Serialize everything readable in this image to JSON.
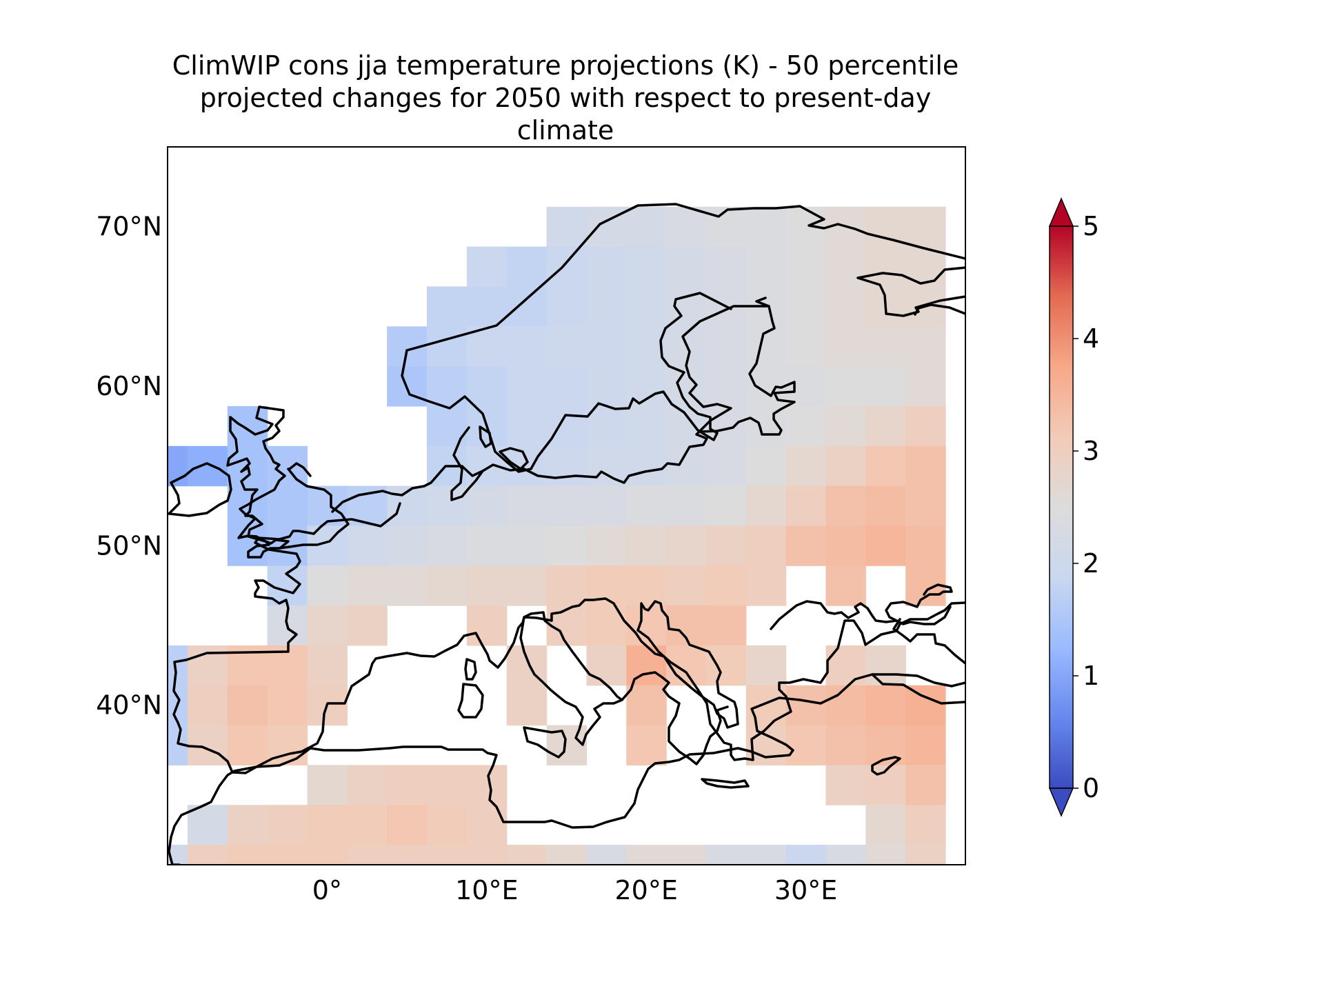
{
  "figure": {
    "title_lines": [
      "ClimWIP cons jja temperature projections (K) - 50 percentile",
      "projected changes for 2050 with respect to present-day",
      "climate"
    ]
  },
  "map": {
    "projection": "PlateCarree",
    "lon_range": [
      -10,
      40
    ],
    "lat_range": [
      30,
      75
    ],
    "grid_cell_deg": 2.5,
    "lon_ticks": [
      {
        "value": 0,
        "label": "0°"
      },
      {
        "value": 10,
        "label": "10°E"
      },
      {
        "value": 20,
        "label": "20°E"
      },
      {
        "value": 30,
        "label": "30°E"
      }
    ],
    "lat_ticks": [
      {
        "value": 70,
        "label": "70°N"
      },
      {
        "value": 60,
        "label": "60°N"
      },
      {
        "value": 50,
        "label": "50°N"
      },
      {
        "value": 40,
        "label": "40°N"
      }
    ],
    "coastlines": true,
    "colormap": "coolwarm",
    "colormap_stops": [
      "#3b4cc0",
      "#6788ee",
      "#9abbff",
      "#c9d7f0",
      "#dddcdc",
      "#f2cbb7",
      "#f7a889",
      "#e36b52",
      "#b40426"
    ],
    "colorbar": {
      "orientation": "vertical",
      "range": [
        0,
        5
      ],
      "extend": "both",
      "ticks": [
        {
          "value": 0,
          "label": "0"
        },
        {
          "value": 1,
          "label": "1"
        },
        {
          "value": 2,
          "label": "2"
        },
        {
          "value": 3,
          "label": "3"
        },
        {
          "value": 4,
          "label": "4"
        },
        {
          "value": 5,
          "label": "5"
        }
      ]
    },
    "grid_values": [
      {
        "lat": 70,
        "lons": [
          15,
          17.5,
          20,
          22.5,
          25,
          27.5,
          30,
          32.5,
          35,
          37.5
        ],
        "values": [
          2.1,
          2.2,
          2.2,
          2.3,
          2.4,
          2.4,
          2.5,
          2.6,
          2.7,
          2.7
        ]
      },
      {
        "lat": 67.5,
        "lons": [
          10,
          12.5,
          15,
          17.5,
          20,
          22.5,
          25,
          27.5,
          30,
          32.5,
          35,
          37.5
        ],
        "values": [
          1.9,
          1.8,
          1.9,
          2.0,
          2.1,
          2.2,
          2.3,
          2.4,
          2.5,
          2.6,
          2.7,
          2.7
        ]
      },
      {
        "lat": 65,
        "lons": [
          7.5,
          10,
          12.5,
          15,
          17.5,
          20,
          22.5,
          25,
          27.5,
          30,
          32.5,
          35,
          37.5
        ],
        "values": [
          1.8,
          1.8,
          1.8,
          1.9,
          2.0,
          2.1,
          2.2,
          2.3,
          2.4,
          2.5,
          2.6,
          2.7,
          2.7
        ]
      },
      {
        "lat": 62.5,
        "lons": [
          5,
          7.5,
          10,
          12.5,
          15,
          17.5,
          20,
          22.5,
          25,
          27.5,
          30,
          32.5,
          35,
          37.5
        ],
        "values": [
          1.6,
          1.8,
          1.9,
          1.9,
          2.0,
          2.0,
          2.1,
          2.2,
          2.3,
          2.4,
          2.5,
          2.6,
          2.6,
          2.6
        ]
      },
      {
        "lat": 60,
        "lons": [
          5,
          7.5,
          10,
          12.5,
          15,
          17.5,
          20,
          22.5,
          25,
          27.5,
          30,
          32.5,
          35,
          37.5
        ],
        "values": [
          1.5,
          1.7,
          1.8,
          1.9,
          1.9,
          2.0,
          2.1,
          2.2,
          2.3,
          2.4,
          2.4,
          2.5,
          2.5,
          2.6
        ]
      },
      {
        "lat": 57.5,
        "lons": [
          -5,
          7.5,
          10,
          12.5,
          15,
          17.5,
          20,
          22.5,
          25,
          27.5,
          30,
          32.5,
          35,
          37.5
        ],
        "values": [
          1.4,
          1.7,
          1.8,
          1.9,
          1.9,
          2.0,
          2.1,
          2.2,
          2.3,
          2.4,
          2.5,
          2.6,
          2.8,
          3.0
        ]
      },
      {
        "lat": 55,
        "lons": [
          -10,
          -7.5,
          -5,
          -2.5,
          7.5,
          10,
          12.5,
          15,
          17.5,
          20,
          22.5,
          25,
          27.5,
          30,
          32.5,
          35,
          37.5
        ],
        "values": [
          1.0,
          1.1,
          1.4,
          1.5,
          1.8,
          1.9,
          1.9,
          2.0,
          2.1,
          2.1,
          2.2,
          2.3,
          2.5,
          2.7,
          2.9,
          3.2,
          3.3
        ]
      },
      {
        "lat": 52.5,
        "lons": [
          -5,
          -2.5,
          0,
          2.5,
          5,
          7.5,
          10,
          12.5,
          15,
          17.5,
          20,
          22.5,
          25,
          27.5,
          30,
          32.5,
          35,
          37.5
        ],
        "values": [
          1.4,
          1.5,
          1.6,
          1.7,
          2.0,
          2.1,
          2.2,
          2.3,
          2.3,
          2.3,
          2.4,
          2.4,
          2.5,
          2.7,
          3.0,
          3.3,
          3.4,
          3.3
        ]
      },
      {
        "lat": 50,
        "lons": [
          -5,
          -2.5,
          0,
          2.5,
          5,
          7.5,
          10,
          12.5,
          15,
          17.5,
          20,
          22.5,
          25,
          27.5,
          30,
          32.5,
          35,
          37.5
        ],
        "values": [
          1.4,
          1.5,
          1.9,
          2.1,
          2.2,
          2.3,
          2.4,
          2.4,
          2.5,
          2.6,
          2.7,
          2.8,
          2.9,
          3.0,
          3.3,
          3.4,
          3.5,
          3.4
        ]
      },
      {
        "lat": 47.5,
        "lons": [
          -2.5,
          0,
          2.5,
          5,
          7.5,
          10,
          12.5,
          15,
          17.5,
          20,
          22.5,
          25,
          27.5,
          32.5,
          37.5
        ],
        "values": [
          1.8,
          2.5,
          2.6,
          2.6,
          2.7,
          2.8,
          2.8,
          3.0,
          3.1,
          3.1,
          3.0,
          3.1,
          3.0,
          3.3,
          3.4
        ]
      },
      {
        "lat": 45,
        "lons": [
          -2.5,
          0,
          2.5,
          10,
          15,
          17.5,
          20,
          22.5,
          25
        ],
        "values": [
          2.3,
          2.8,
          2.9,
          3.0,
          3.0,
          3.1,
          3.2,
          3.3,
          3.3
        ]
      },
      {
        "lat": 42.5,
        "lons": [
          -10,
          -7.5,
          -5,
          -2.5,
          0,
          12.5,
          17.5,
          20,
          22.5,
          25,
          27.5,
          32.5,
          35
        ],
        "values": [
          1.7,
          2.9,
          3.2,
          3.2,
          2.9,
          2.9,
          2.9,
          3.6,
          3.2,
          3.1,
          2.8,
          3.0,
          2.8
        ]
      },
      {
        "lat": 40,
        "lons": [
          -10,
          -7.5,
          -5,
          -2.5,
          0,
          12.5,
          20,
          27.5,
          30,
          32.5,
          35,
          37.5
        ],
        "values": [
          1.7,
          3.0,
          3.3,
          3.2,
          3.0,
          2.9,
          3.3,
          3.1,
          3.3,
          3.4,
          3.5,
          3.6
        ]
      },
      {
        "lat": 37.5,
        "lons": [
          -10,
          -7.5,
          -5,
          -2.5,
          15,
          20,
          27.5,
          30,
          32.5,
          35,
          37.5
        ],
        "values": [
          1.7,
          2.9,
          3.2,
          3.1,
          2.7,
          3.2,
          3.0,
          3.2,
          3.3,
          3.4,
          3.5
        ]
      },
      {
        "lat": 35,
        "lons": [
          0,
          2.5,
          5,
          7.5,
          10,
          32.5,
          35,
          37.5
        ],
        "values": [
          2.7,
          2.9,
          3.0,
          3.0,
          3.0,
          2.9,
          3.0,
          3.3
        ]
      },
      {
        "lat": 32.5,
        "lons": [
          -7.5,
          -5,
          -2.5,
          0,
          2.5,
          5,
          7.5,
          10,
          35,
          37.5
        ],
        "values": [
          2.2,
          2.9,
          3.0,
          3.1,
          3.1,
          3.2,
          3.1,
          3.0,
          2.7,
          3.0
        ]
      },
      {
        "lat": 30,
        "lons": [
          -10,
          -7.5,
          -5,
          -2.5,
          0,
          2.5,
          5,
          7.5,
          10,
          12.5,
          15,
          17.5,
          20,
          22.5,
          25,
          27.5,
          30,
          32.5,
          35,
          37.5
        ],
        "values": [
          2.1,
          3.0,
          3.1,
          3.1,
          3.1,
          3.0,
          3.0,
          3.0,
          3.0,
          2.9,
          2.7,
          2.3,
          2.6,
          2.6,
          2.3,
          2.3,
          1.9,
          2.3,
          2.6,
          2.9
        ]
      }
    ]
  }
}
